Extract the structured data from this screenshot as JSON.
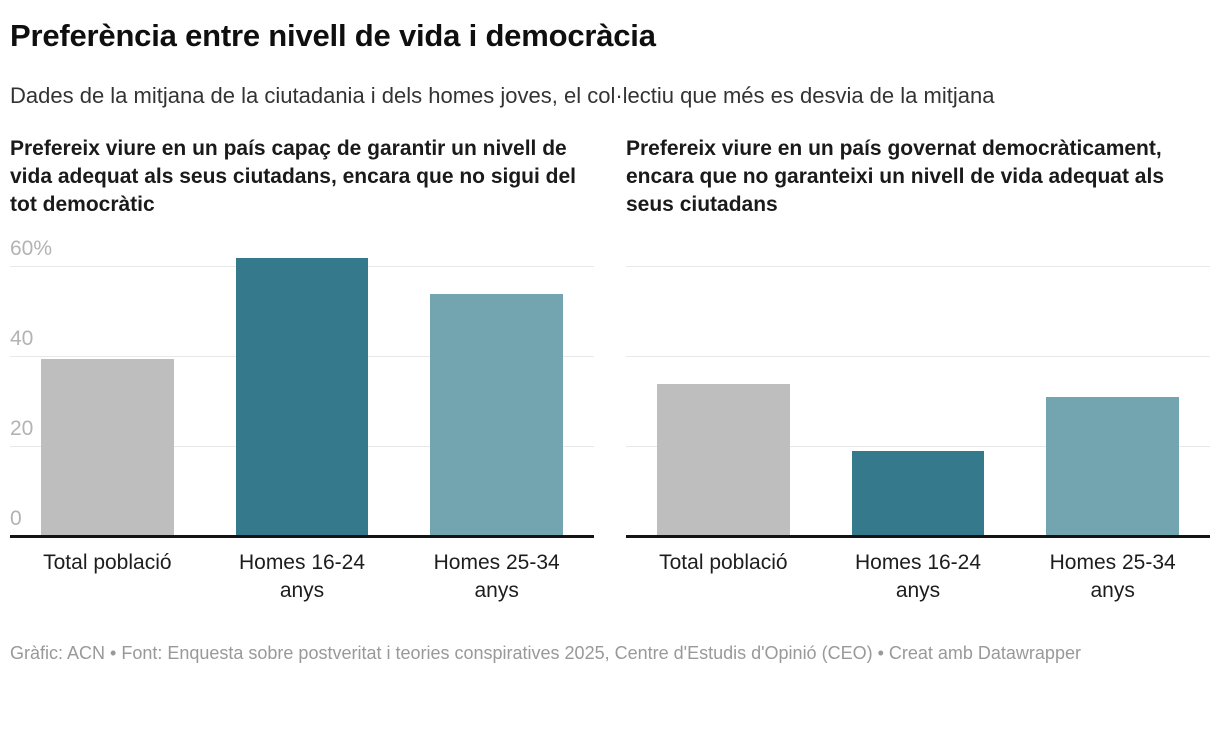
{
  "header": {
    "title": "Preferència entre nivell de vida i democràcia",
    "subtitle": "Dades de la mitjana de la ciutadania i dels homes joves, el col·lectiu que més es desvia de la mitjana"
  },
  "chart_data": [
    {
      "type": "bar",
      "title": "Prefereix viure en un país capaç de garantir un nivell de vida adequat als seus ciutadans, encara que no sigui del tot democràtic",
      "categories": [
        "Total població",
        "Homes 16-24 anys",
        "Homes 25-34 anys"
      ],
      "values": [
        39.5,
        62,
        54
      ],
      "unit": "%",
      "ylim": [
        0,
        60
      ],
      "yticks": [
        0,
        20,
        40,
        60
      ],
      "ytick_labels": [
        "0",
        "20",
        "40",
        "60%"
      ],
      "show_ytick_labels": true,
      "grid": true,
      "legend": "none",
      "bar_colors": [
        "#bebebe",
        "#35798d",
        "#73a5b0"
      ]
    },
    {
      "type": "bar",
      "title": "Prefereix viure en un país governat democràticament, encara que no garanteixi un nivell de vida adequat als seus ciutadans",
      "categories": [
        "Total població",
        "Homes 16-24 anys",
        "Homes 25-34 anys"
      ],
      "values": [
        34,
        19,
        31
      ],
      "unit": "%",
      "ylim": [
        0,
        60
      ],
      "yticks": [
        0,
        20,
        40,
        60
      ],
      "ytick_labels": [
        "0",
        "20",
        "40",
        "60%"
      ],
      "show_ytick_labels": false,
      "grid": true,
      "legend": "none",
      "bar_colors": [
        "#bebebe",
        "#35798d",
        "#73a5b0"
      ]
    }
  ],
  "styles": {
    "bar_gray": "#bebebe",
    "bar_dark_teal": "#35798d",
    "bar_light_teal": "#73a5b0",
    "gridline_color": "#e8e8e8",
    "baseline_color": "#141414",
    "ytick_color": "#b3b3b3",
    "category_label_color": "#1d1d1d"
  },
  "footer": {
    "text": "Gràfic: ACN • Font: Enquesta sobre postveritat i teories conspiratives 2025, Centre d'Estudis d'Opinió (CEO) • Creat amb Datawrapper"
  }
}
